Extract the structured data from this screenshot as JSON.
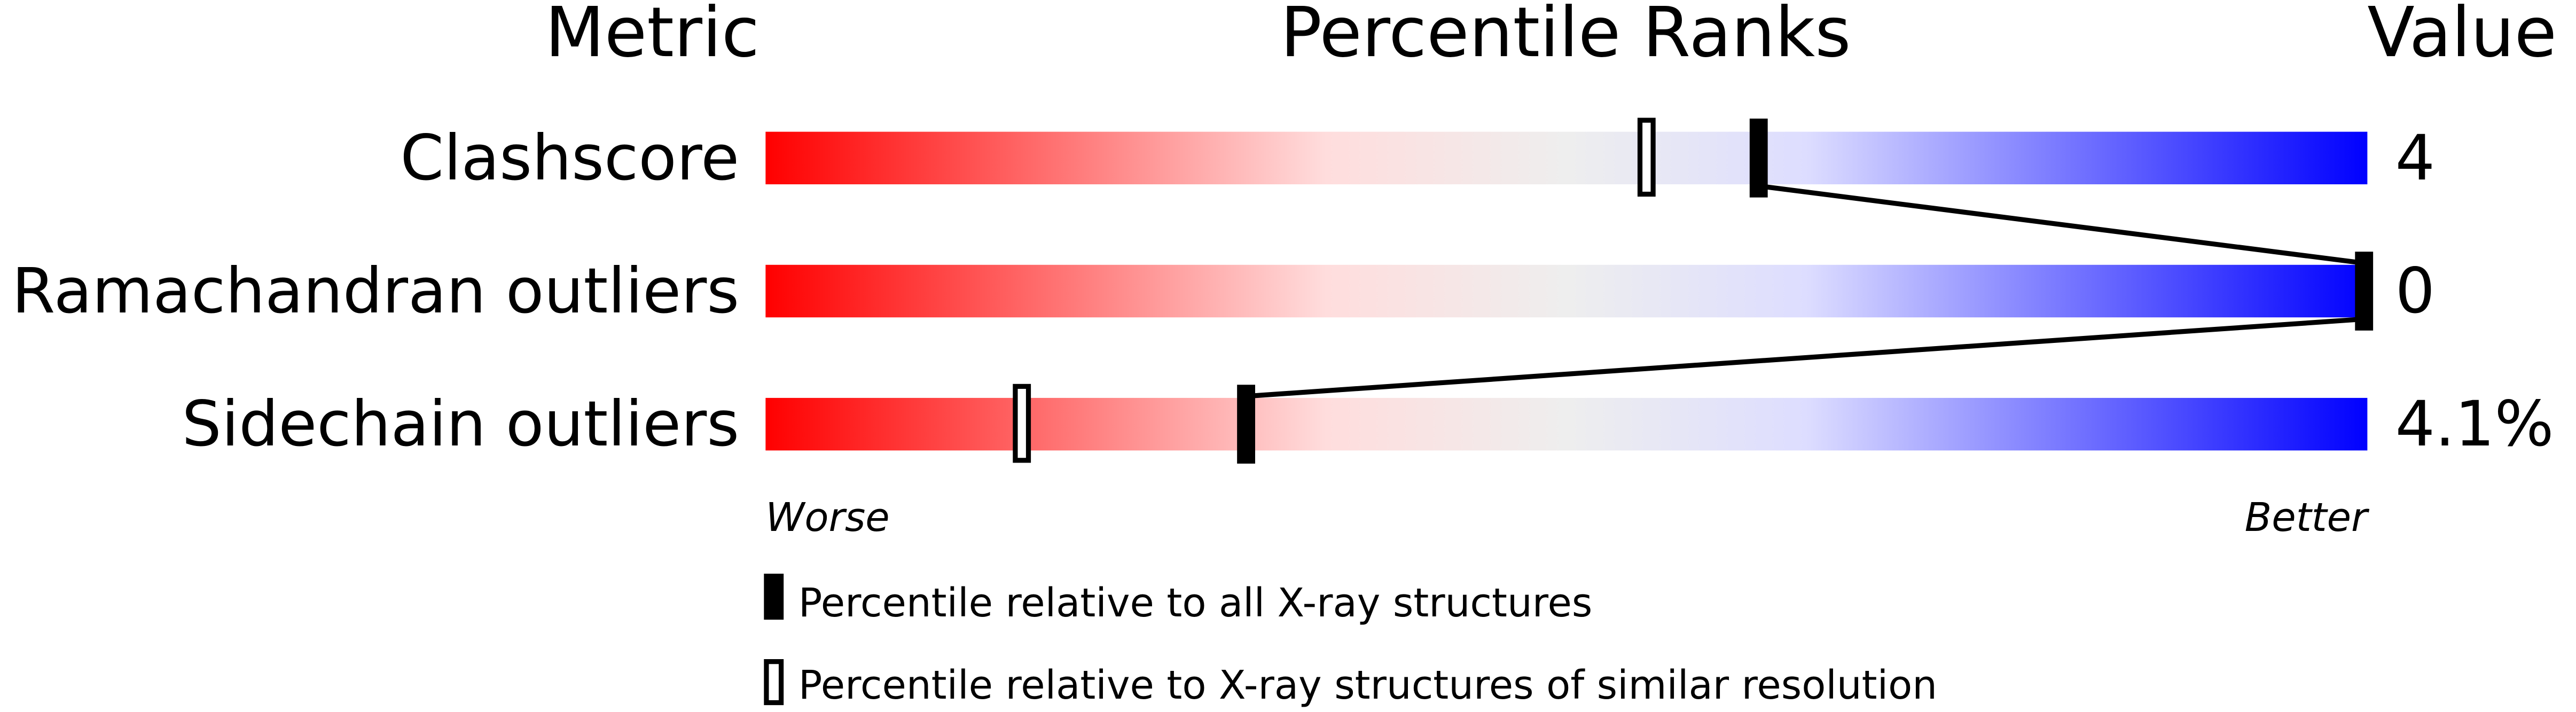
{
  "chart_data": {
    "type": "percentile-slider",
    "headers": {
      "metric": "Metric",
      "ranks": "Percentile Ranks",
      "value": "Value"
    },
    "xlim": [
      0,
      100
    ],
    "axis_labels": {
      "left": "Worse",
      "right": "Better"
    },
    "colors": {
      "worse": "#ff0000",
      "middle": "#eeeeee",
      "better": "#0000ff",
      "marker": "#000000"
    },
    "rows": [
      {
        "metric": "Clashscore",
        "value": "4",
        "percentile_all": 62,
        "percentile_similar": 55
      },
      {
        "metric": "Ramachandran outliers",
        "value": "0",
        "percentile_all": 100,
        "percentile_similar": null
      },
      {
        "metric": "Sidechain outliers",
        "value": "4.1%",
        "percentile_all": 30,
        "percentile_similar": 16
      }
    ],
    "legend": [
      {
        "marker": "filled",
        "label": "Percentile relative to all X-ray structures"
      },
      {
        "marker": "open",
        "label": "Percentile relative to X-ray structures of similar resolution"
      }
    ]
  }
}
